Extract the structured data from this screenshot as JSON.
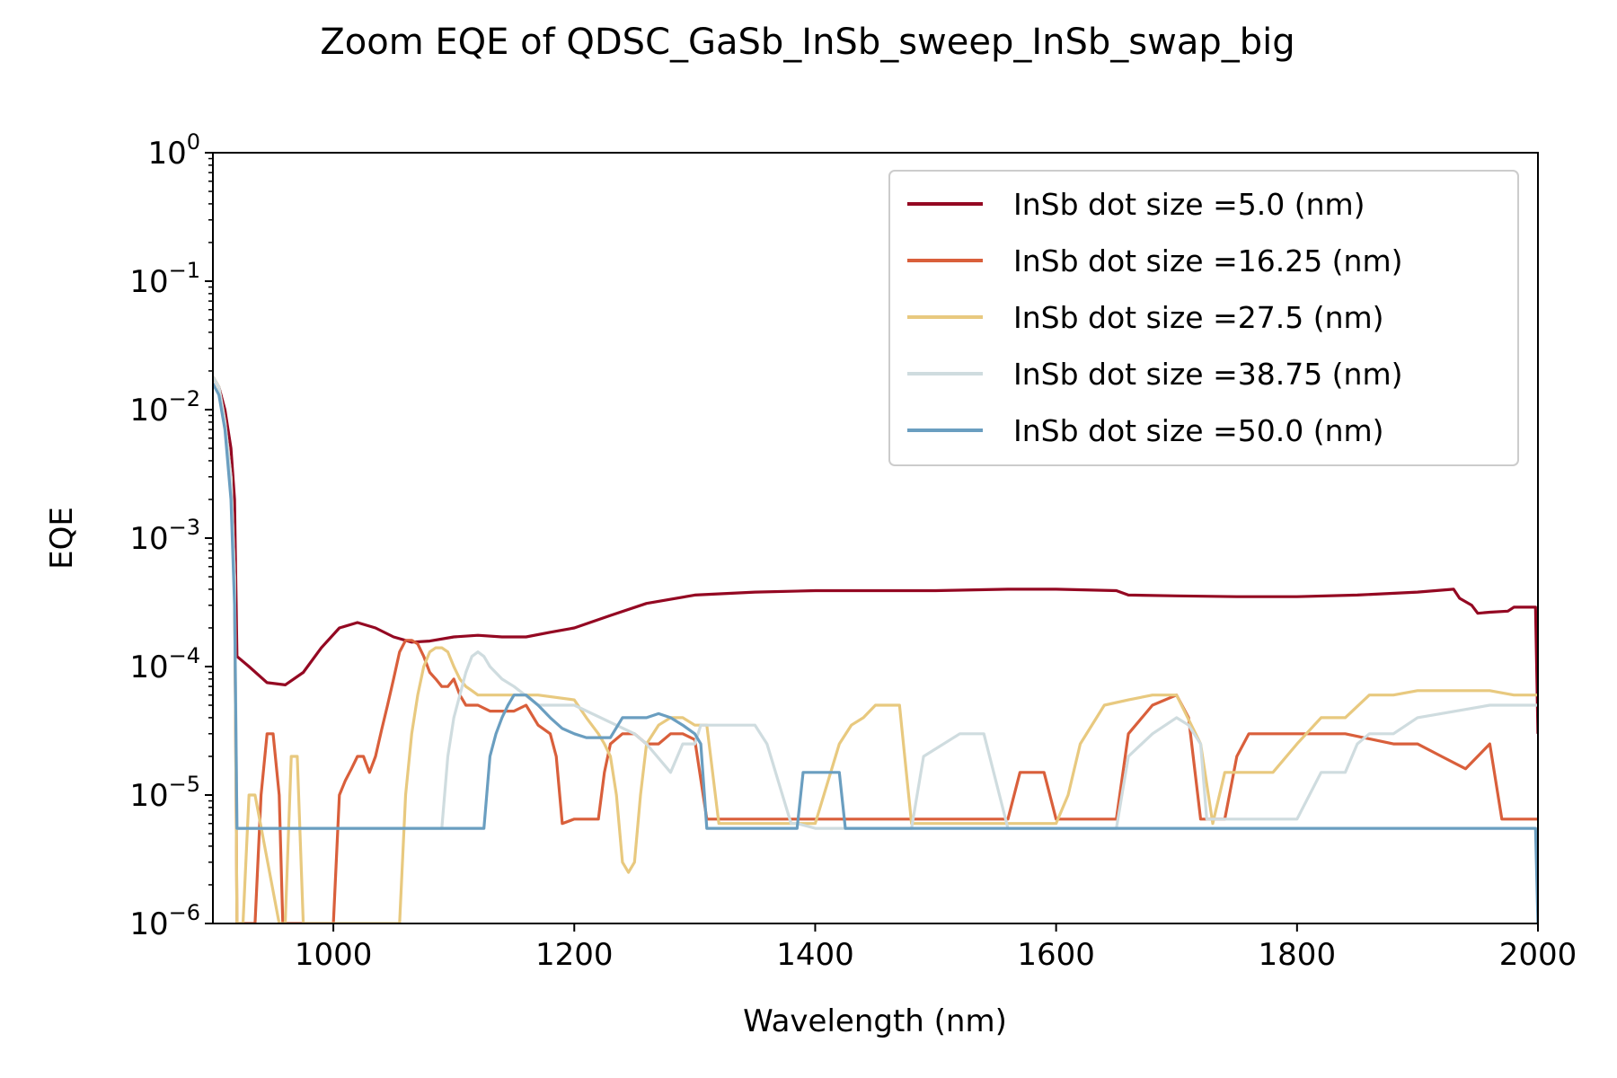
{
  "chart_data": {
    "type": "line",
    "title": "Zoom EQE of QDSC_GaSb_InSb_sweep_InSb_swap_big",
    "xlabel": "Wavelength (nm)",
    "ylabel": "EQE",
    "xlim": [
      900,
      2000
    ],
    "ylim": [
      1e-06,
      1
    ],
    "yscale": "log",
    "xticks": [
      1000,
      1200,
      1400,
      1600,
      1800,
      2000
    ],
    "xtick_labels": [
      "1000",
      "1200",
      "1400",
      "1600",
      "1800",
      "2000"
    ],
    "yticks": [
      {
        "value": 1e-06,
        "base": "10",
        "exp": "−6"
      },
      {
        "value": 1e-05,
        "base": "10",
        "exp": "−5"
      },
      {
        "value": 0.0001,
        "base": "10",
        "exp": "−4"
      },
      {
        "value": 0.001,
        "base": "10",
        "exp": "−3"
      },
      {
        "value": 0.01,
        "base": "10",
        "exp": "−2"
      },
      {
        "value": 0.1,
        "base": "10",
        "exp": "−1"
      },
      {
        "value": 1,
        "base": "10",
        "exp": "0"
      }
    ],
    "grid": false,
    "legend_position": "top-right",
    "series": [
      {
        "name": "InSb dot size =5.0 (nm)",
        "color": "#940822",
        "x": [
          900,
          905,
          910,
          915,
          918,
          920,
          930,
          945,
          960,
          975,
          990,
          1005,
          1020,
          1035,
          1050,
          1065,
          1080,
          1100,
          1120,
          1140,
          1160,
          1180,
          1200,
          1230,
          1260,
          1300,
          1350,
          1400,
          1450,
          1500,
          1560,
          1600,
          1650,
          1660,
          1700,
          1750,
          1800,
          1850,
          1900,
          1930,
          1935,
          1945,
          1950,
          1960,
          1975,
          1980,
          1998,
          2000
        ],
        "y": [
          0.018,
          0.015,
          0.01,
          0.005,
          0.002,
          0.00012,
          0.0001,
          7.5e-05,
          7.2e-05,
          9e-05,
          0.00014,
          0.0002,
          0.00022,
          0.0002,
          0.00017,
          0.000155,
          0.000158,
          0.00017,
          0.000175,
          0.00017,
          0.00017,
          0.000185,
          0.0002,
          0.00025,
          0.00031,
          0.00036,
          0.00038,
          0.00039,
          0.00039,
          0.00039,
          0.0004,
          0.0004,
          0.00039,
          0.00036,
          0.000355,
          0.00035,
          0.00035,
          0.00036,
          0.00038,
          0.0004,
          0.00034,
          0.0003,
          0.00026,
          0.000265,
          0.00027,
          0.00029,
          0.00029,
          3e-05
        ]
      },
      {
        "name": "InSb dot size =16.25 (nm)",
        "color": "#d95f3b",
        "x": [
          900,
          905,
          910,
          915,
          918,
          920,
          925,
          930,
          935,
          940,
          945,
          950,
          955,
          958,
          960,
          965,
          980,
          1000,
          1005,
          1010,
          1015,
          1020,
          1025,
          1030,
          1035,
          1040,
          1045,
          1050,
          1055,
          1060,
          1065,
          1070,
          1075,
          1080,
          1085,
          1090,
          1095,
          1100,
          1105,
          1110,
          1120,
          1130,
          1150,
          1160,
          1170,
          1180,
          1185,
          1190,
          1200,
          1220,
          1225,
          1230,
          1240,
          1250,
          1260,
          1270,
          1280,
          1290,
          1300,
          1310,
          1400,
          1500,
          1560,
          1570,
          1590,
          1600,
          1620,
          1640,
          1650,
          1660,
          1680,
          1700,
          1710,
          1720,
          1730,
          1740,
          1750,
          1760,
          1780,
          1800,
          1820,
          1840,
          1880,
          1900,
          1920,
          1940,
          1960,
          1970,
          2000
        ],
        "y": [
          0.018,
          0.015,
          0.008,
          0.003,
          0.0005,
          1e-06,
          1e-06,
          1e-06,
          1e-06,
          1e-05,
          3e-05,
          3e-05,
          1e-05,
          1e-06,
          1e-06,
          1e-06,
          1e-06,
          1e-06,
          1e-05,
          1.3e-05,
          1.6e-05,
          2e-05,
          2e-05,
          1.5e-05,
          2e-05,
          3.2e-05,
          5e-05,
          8e-05,
          0.00013,
          0.00016,
          0.00016,
          0.00015,
          0.00012,
          9e-05,
          8e-05,
          7e-05,
          7e-05,
          8e-05,
          6e-05,
          5e-05,
          5e-05,
          4.5e-05,
          4.5e-05,
          5e-05,
          3.5e-05,
          3e-05,
          2e-05,
          6e-06,
          6.5e-06,
          6.5e-06,
          1.5e-05,
          2.5e-05,
          3e-05,
          3e-05,
          2.5e-05,
          2.5e-05,
          3e-05,
          3e-05,
          2.7e-05,
          6.5e-06,
          6.5e-06,
          6.5e-06,
          6.5e-06,
          1.5e-05,
          1.5e-05,
          6.5e-06,
          6.5e-06,
          6.5e-06,
          6.5e-06,
          3e-05,
          5e-05,
          6e-05,
          4e-05,
          6.5e-06,
          6.5e-06,
          6.5e-06,
          2e-05,
          3e-05,
          3e-05,
          3e-05,
          3e-05,
          3e-05,
          2.5e-05,
          2.5e-05,
          2e-05,
          1.6e-05,
          2.5e-05,
          6.5e-06,
          6.5e-06
        ]
      },
      {
        "name": "InSb dot size =27.5 (nm)",
        "color": "#e8c97f",
        "x": [
          900,
          905,
          910,
          915,
          918,
          920,
          925,
          930,
          935,
          955,
          960,
          965,
          970,
          975,
          980,
          1000,
          1050,
          1055,
          1060,
          1065,
          1070,
          1075,
          1080,
          1085,
          1090,
          1095,
          1100,
          1105,
          1110,
          1115,
          1120,
          1130,
          1150,
          1160,
          1165,
          1170,
          1200,
          1210,
          1220,
          1225,
          1230,
          1235,
          1240,
          1245,
          1250,
          1255,
          1260,
          1270,
          1280,
          1290,
          1300,
          1310,
          1320,
          1350,
          1380,
          1400,
          1420,
          1430,
          1440,
          1450,
          1460,
          1470,
          1480,
          1490,
          1500,
          1540,
          1580,
          1600,
          1610,
          1620,
          1640,
          1660,
          1680,
          1700,
          1720,
          1730,
          1740,
          1760,
          1780,
          1800,
          1820,
          1840,
          1860,
          1880,
          1900,
          1920,
          1940,
          1960,
          1980,
          2000
        ],
        "y": [
          0.018,
          0.015,
          0.008,
          0.003,
          0.0005,
          1e-06,
          1e-06,
          1e-05,
          1e-05,
          1e-06,
          1e-06,
          2e-05,
          2e-05,
          1e-06,
          1e-06,
          1e-06,
          1e-06,
          1e-06,
          1e-05,
          3e-05,
          6e-05,
          0.0001,
          0.00013,
          0.00014,
          0.00014,
          0.00013,
          0.0001,
          8e-05,
          7e-05,
          6.5e-05,
          6e-05,
          6e-05,
          6e-05,
          6e-05,
          6e-05,
          6e-05,
          5.5e-05,
          4e-05,
          3e-05,
          2.5e-05,
          2e-05,
          1e-05,
          3e-06,
          2.5e-06,
          3e-06,
          1e-05,
          2.5e-05,
          3.5e-05,
          4e-05,
          4e-05,
          3.5e-05,
          3.5e-05,
          6e-06,
          6e-06,
          6e-06,
          6e-06,
          2.5e-05,
          3.5e-05,
          4e-05,
          5e-05,
          5e-05,
          5e-05,
          6e-06,
          6e-06,
          6e-06,
          6e-06,
          6e-06,
          6e-06,
          1e-05,
          2.5e-05,
          5e-05,
          5.5e-05,
          6e-05,
          6e-05,
          2.5e-05,
          6e-06,
          1.5e-05,
          1.5e-05,
          1.5e-05,
          2.5e-05,
          4e-05,
          4e-05,
          6e-05,
          6e-05,
          6.5e-05,
          6.5e-05,
          6.5e-05,
          6.5e-05,
          6e-05,
          6e-05
        ]
      },
      {
        "name": "InSb dot size =38.75 (nm)",
        "color": "#cfdcdf",
        "x": [
          900,
          905,
          910,
          915,
          918,
          920,
          1000,
          1090,
          1095,
          1100,
          1105,
          1110,
          1115,
          1120,
          1125,
          1130,
          1140,
          1150,
          1170,
          1200,
          1250,
          1260,
          1280,
          1290,
          1300,
          1305,
          1320,
          1350,
          1360,
          1380,
          1385,
          1400,
          1420,
          1460,
          1480,
          1490,
          1520,
          1540,
          1560,
          1620,
          1650,
          1660,
          1680,
          1700,
          1710,
          1720,
          1725,
          1740,
          1800,
          1820,
          1840,
          1850,
          1860,
          1880,
          1900,
          1960,
          2000
        ],
        "y": [
          0.018,
          0.015,
          0.008,
          0.003,
          0.0005,
          5.5e-06,
          5.5e-06,
          5.5e-06,
          2e-05,
          4e-05,
          6e-05,
          9e-05,
          0.00012,
          0.00013,
          0.00012,
          0.0001,
          8e-05,
          7e-05,
          5e-05,
          5e-05,
          3e-05,
          2.5e-05,
          1.5e-05,
          2.5e-05,
          2.5e-05,
          3.5e-05,
          3.5e-05,
          3.5e-05,
          2.5e-05,
          6e-06,
          6e-06,
          5.5e-06,
          5.5e-06,
          5.5e-06,
          5.5e-06,
          2e-05,
          3e-05,
          3e-05,
          5.5e-06,
          5.5e-06,
          5.5e-06,
          2e-05,
          3e-05,
          4e-05,
          3.5e-05,
          2.5e-05,
          6.5e-06,
          6.5e-06,
          6.5e-06,
          1.5e-05,
          1.5e-05,
          2.5e-05,
          3e-05,
          3e-05,
          4e-05,
          5e-05,
          5e-05
        ]
      },
      {
        "name": "InSb dot size =50.0 (nm)",
        "color": "#6a9ec0",
        "x": [
          900,
          905,
          910,
          915,
          918,
          920,
          1000,
          1100,
          1125,
          1130,
          1135,
          1140,
          1145,
          1150,
          1160,
          1170,
          1180,
          1190,
          1200,
          1210,
          1220,
          1230,
          1240,
          1260,
          1270,
          1280,
          1290,
          1300,
          1305,
          1310,
          1385,
          1390,
          1420,
          1425,
          1500,
          1600,
          1700,
          1800,
          1900,
          1998,
          2000
        ],
        "y": [
          0.016,
          0.013,
          0.007,
          0.002,
          0.0003,
          5.5e-06,
          5.5e-06,
          5.5e-06,
          5.5e-06,
          2e-05,
          3e-05,
          4e-05,
          5e-05,
          6e-05,
          6e-05,
          5e-05,
          4e-05,
          3.3e-05,
          3e-05,
          2.8e-05,
          2.8e-05,
          2.8e-05,
          4e-05,
          4e-05,
          4.3e-05,
          4e-05,
          3.5e-05,
          3e-05,
          2.5e-05,
          5.5e-06,
          5.5e-06,
          1.5e-05,
          1.5e-05,
          5.5e-06,
          5.5e-06,
          5.5e-06,
          5.5e-06,
          5.5e-06,
          5.5e-06,
          5.5e-06,
          1e-06
        ]
      }
    ]
  }
}
